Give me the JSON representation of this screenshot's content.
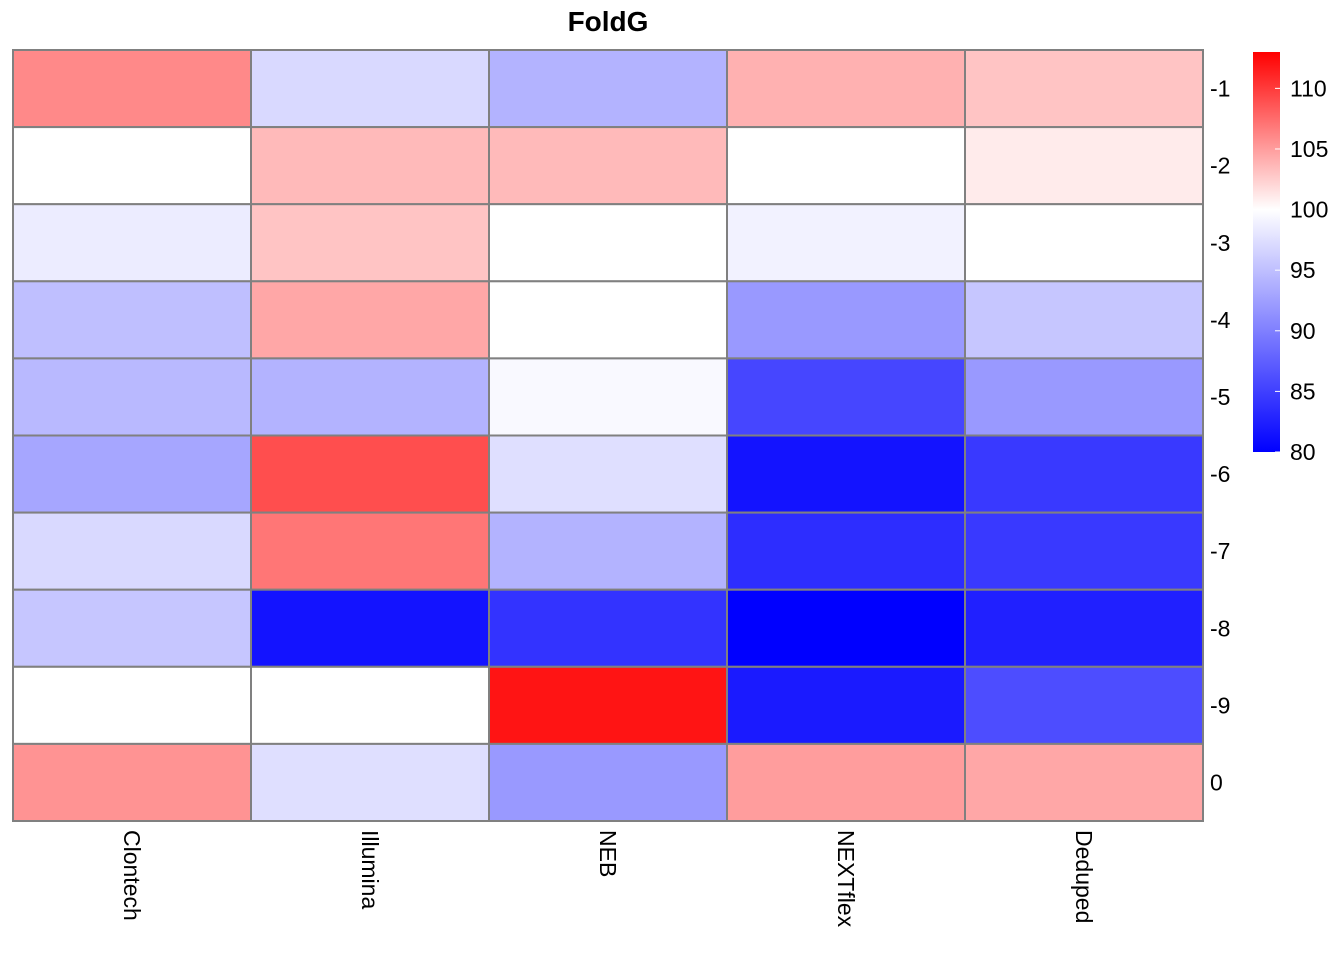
{
  "chart_data": {
    "type": "heatmap",
    "title": "FoldG",
    "columns": [
      "Clontech",
      "Illumina",
      "NEB",
      "NEXTflex",
      "Deduped"
    ],
    "rows": [
      "-1",
      "-2",
      "-3",
      "-4",
      "-5",
      "-6",
      "-7",
      "-8",
      "-9",
      "0"
    ],
    "values": [
      [
        106,
        97,
        94,
        104,
        103
      ],
      [
        100,
        103.5,
        103.5,
        100,
        101
      ],
      [
        98.5,
        103,
        100,
        99,
        100
      ],
      [
        95,
        104.5,
        100,
        92,
        95.5
      ],
      [
        94.5,
        94,
        99.5,
        85.5,
        92
      ],
      [
        93,
        109,
        97.5,
        81.5,
        84.5
      ],
      [
        97,
        107,
        94,
        83.5,
        84.5
      ],
      [
        95.5,
        81.5,
        84,
        80,
        82.5
      ],
      [
        100,
        100,
        112,
        82,
        86
      ],
      [
        105.5,
        97.5,
        92,
        105,
        104.5
      ]
    ],
    "color_scale": {
      "min": 80,
      "mid": 100,
      "max": 113,
      "low_color": "#0000FF",
      "mid_color": "#FFFFFF",
      "high_color": "#FF0000",
      "ticks": [
        80,
        85,
        90,
        95,
        100,
        105,
        110
      ]
    },
    "grid": true,
    "cell_border_color": "#808080",
    "legend_placement": "right"
  }
}
